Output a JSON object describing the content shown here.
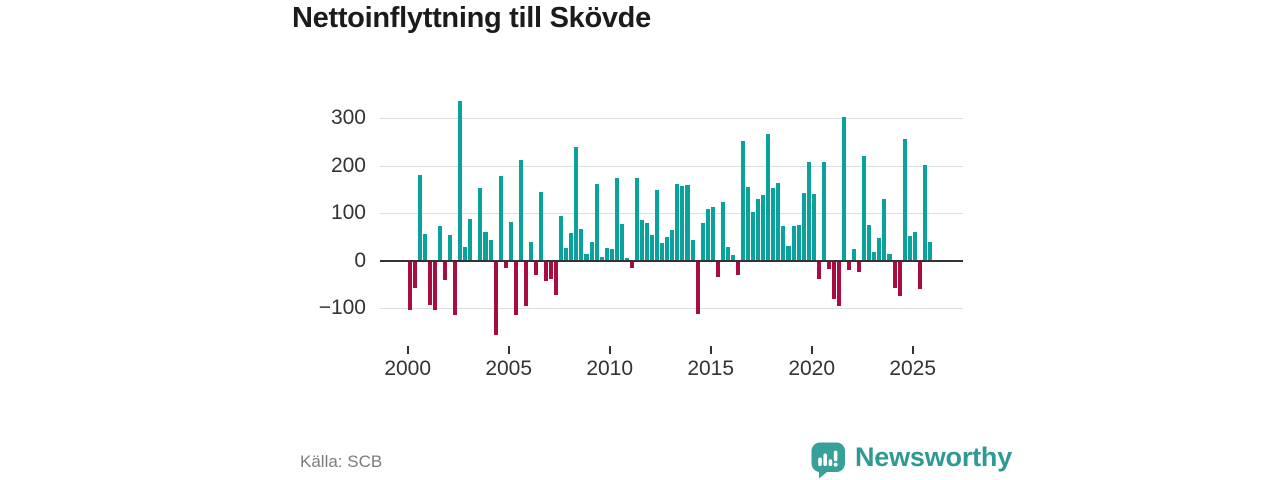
{
  "title": "Nettoinflyttning till Skövde",
  "source": {
    "label": "Källa: SCB"
  },
  "branding": {
    "name": "Newsworthy",
    "icon": "newsworthy-speech-bubble-bar-chart-icon",
    "text_color": "#2f9a93",
    "icon_color": "#37a099"
  },
  "colors": {
    "positive_bar": "#0aa29d",
    "negative_bar": "#a80c43",
    "grid": "#dedede",
    "zero_line": "#333333",
    "axis_text": "#333333",
    "muted_text": "#7d7d7d",
    "title_text": "#1b1b1b",
    "background": "#ffffff"
  },
  "chart_data": {
    "type": "bar",
    "title": "Nettoinflyttning till Skövde",
    "frequency": "quarterly",
    "start_year": 2000,
    "values_per_year": 4,
    "grid": true,
    "ylim": [
      -177,
      349
    ],
    "y_ticks": [
      300,
      200,
      100,
      0,
      -100
    ],
    "y_tick_labels": [
      "300",
      "200",
      "100",
      "0",
      "−100"
    ],
    "x_ticks": [
      2000,
      2005,
      2010,
      2015,
      2020,
      2025
    ],
    "x_tick_labels": [
      "2000",
      "2005",
      "2010",
      "2015",
      "2020",
      "2025"
    ],
    "values": [
      -101,
      -55,
      180,
      56,
      -90,
      -102,
      74,
      -39,
      55,
      -112,
      337,
      28,
      88,
      0,
      153,
      61,
      44,
      -153,
      179,
      -12,
      82,
      -111,
      212,
      -92,
      40,
      -28,
      144,
      -40,
      -35,
      -70,
      93,
      26,
      59,
      240,
      67,
      15,
      40,
      161,
      8,
      27,
      24,
      175,
      78,
      5,
      -12,
      174,
      86,
      80,
      54,
      148,
      38,
      49,
      65,
      162,
      157,
      160,
      44,
      -110,
      79,
      109,
      114,
      -31,
      123,
      29,
      11,
      -27,
      252,
      155,
      103,
      130,
      138,
      267,
      154,
      163,
      73,
      31,
      72,
      75,
      142,
      207,
      140,
      -37,
      207,
      -14,
      -78,
      -92,
      303,
      -18,
      24,
      -22,
      221,
      75,
      18,
      47,
      130,
      15,
      -55,
      -71,
      257,
      52,
      61,
      -58,
      201,
      40
    ]
  }
}
